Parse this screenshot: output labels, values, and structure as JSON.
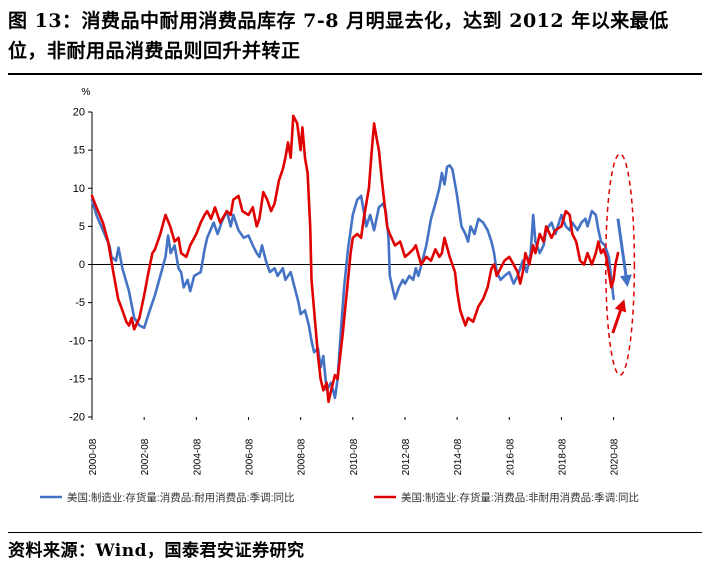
{
  "figure": {
    "title": "图 13：消费品中耐用消费品库存 7-8 月明显去化，达到 2012 年以来最低位，非耐用品消费品则回升并转正",
    "source": "资料来源：Wind，国泰君安证券研究"
  },
  "chart_data": {
    "type": "line",
    "title": "",
    "ylabel": "%",
    "xlabel": "",
    "ylim": [
      -20,
      20
    ],
    "yticks": [
      -20,
      -15,
      -10,
      -5,
      0,
      5,
      10,
      15,
      20
    ],
    "xlim": [
      2000.583,
      2021.25
    ],
    "xticks": [
      {
        "x": 2000.583,
        "label": "2000-08"
      },
      {
        "x": 2002.583,
        "label": "2002-08"
      },
      {
        "x": 2004.583,
        "label": "2004-08"
      },
      {
        "x": 2006.583,
        "label": "2006-08"
      },
      {
        "x": 2008.583,
        "label": "2008-08"
      },
      {
        "x": 2010.583,
        "label": "2010-08"
      },
      {
        "x": 2012.583,
        "label": "2012-08"
      },
      {
        "x": 2014.583,
        "label": "2014-08"
      },
      {
        "x": 2016.583,
        "label": "2016-08"
      },
      {
        "x": 2018.583,
        "label": "2018-08"
      },
      {
        "x": 2020.583,
        "label": "2020-08"
      }
    ],
    "legend_position": "bottom",
    "series": [
      {
        "name": "美国:制造业:存货量:消费品:耐用消费品:季调:同比",
        "color": "#4472C4",
        "points": [
          [
            2000.583,
            8.5
          ],
          [
            2000.75,
            6.5
          ],
          [
            2001.0,
            4.5
          ],
          [
            2001.25,
            2.5
          ],
          [
            2001.33,
            1.0
          ],
          [
            2001.5,
            0.5
          ],
          [
            2001.6,
            2.2
          ],
          [
            2001.75,
            -0.5
          ],
          [
            2002.0,
            -3.5
          ],
          [
            2002.2,
            -7.0
          ],
          [
            2002.4,
            -8.0
          ],
          [
            2002.583,
            -8.3
          ],
          [
            2002.75,
            -6.5
          ],
          [
            2003.0,
            -4.0
          ],
          [
            2003.2,
            -1.5
          ],
          [
            2003.4,
            1.0
          ],
          [
            2003.5,
            3.8
          ],
          [
            2003.6,
            1.5
          ],
          [
            2003.75,
            2.5
          ],
          [
            2003.9,
            -0.5
          ],
          [
            2004.0,
            -1.0
          ],
          [
            2004.1,
            -3.0
          ],
          [
            2004.25,
            -2.0
          ],
          [
            2004.35,
            -3.5
          ],
          [
            2004.5,
            -1.5
          ],
          [
            2004.75,
            -1.0
          ],
          [
            2004.9,
            2.0
          ],
          [
            2005.0,
            3.5
          ],
          [
            2005.25,
            5.5
          ],
          [
            2005.4,
            4.0
          ],
          [
            2005.583,
            5.8
          ],
          [
            2005.75,
            7.0
          ],
          [
            2005.9,
            5.0
          ],
          [
            2006.0,
            6.5
          ],
          [
            2006.2,
            4.5
          ],
          [
            2006.4,
            3.5
          ],
          [
            2006.583,
            3.8
          ],
          [
            2006.75,
            2.5
          ],
          [
            2006.9,
            1.5
          ],
          [
            2007.0,
            1.0
          ],
          [
            2007.1,
            2.5
          ],
          [
            2007.25,
            0.5
          ],
          [
            2007.4,
            -1.0
          ],
          [
            2007.583,
            -0.5
          ],
          [
            2007.7,
            -1.5
          ],
          [
            2007.9,
            -0.5
          ],
          [
            2008.0,
            -2.0
          ],
          [
            2008.2,
            -1.0
          ],
          [
            2008.35,
            -3.0
          ],
          [
            2008.5,
            -5.0
          ],
          [
            2008.583,
            -6.5
          ],
          [
            2008.75,
            -6.0
          ],
          [
            2008.9,
            -8.0
          ],
          [
            2009.0,
            -10.0
          ],
          [
            2009.1,
            -11.5
          ],
          [
            2009.25,
            -11.0
          ],
          [
            2009.35,
            -13.5
          ],
          [
            2009.45,
            -12.0
          ],
          [
            2009.583,
            -16.5
          ],
          [
            2009.75,
            -15.5
          ],
          [
            2009.9,
            -17.5
          ],
          [
            2010.0,
            -15.0
          ],
          [
            2010.1,
            -10.0
          ],
          [
            2010.25,
            -3.0
          ],
          [
            2010.4,
            2.0
          ],
          [
            2010.583,
            6.5
          ],
          [
            2010.75,
            8.5
          ],
          [
            2010.9,
            9.0
          ],
          [
            2011.0,
            7.0
          ],
          [
            2011.1,
            5.0
          ],
          [
            2011.25,
            6.5
          ],
          [
            2011.4,
            4.5
          ],
          [
            2011.583,
            7.5
          ],
          [
            2011.75,
            8.0
          ],
          [
            2011.85,
            7.0
          ],
          [
            2011.95,
            3.5
          ],
          [
            2012.0,
            -1.5
          ],
          [
            2012.1,
            -3.0
          ],
          [
            2012.2,
            -4.5
          ],
          [
            2012.35,
            -3.0
          ],
          [
            2012.5,
            -2.0
          ],
          [
            2012.583,
            -2.5
          ],
          [
            2012.75,
            -1.5
          ],
          [
            2012.9,
            -2.0
          ],
          [
            2013.0,
            -0.5
          ],
          [
            2013.1,
            -1.5
          ],
          [
            2013.25,
            0.5
          ],
          [
            2013.4,
            2.5
          ],
          [
            2013.583,
            6.0
          ],
          [
            2013.75,
            8.0
          ],
          [
            2013.9,
            10.0
          ],
          [
            2014.0,
            12.0
          ],
          [
            2014.1,
            10.5
          ],
          [
            2014.2,
            12.8
          ],
          [
            2014.3,
            13.0
          ],
          [
            2014.4,
            12.5
          ],
          [
            2014.583,
            9.0
          ],
          [
            2014.75,
            5.0
          ],
          [
            2014.9,
            4.0
          ],
          [
            2015.0,
            3.0
          ],
          [
            2015.1,
            5.0
          ],
          [
            2015.25,
            4.0
          ],
          [
            2015.4,
            6.0
          ],
          [
            2015.583,
            5.5
          ],
          [
            2015.75,
            4.5
          ],
          [
            2015.9,
            3.0
          ],
          [
            2016.0,
            1.5
          ],
          [
            2016.1,
            -1.0
          ],
          [
            2016.25,
            -2.0
          ],
          [
            2016.4,
            -1.5
          ],
          [
            2016.583,
            -1.0
          ],
          [
            2016.75,
            -2.5
          ],
          [
            2016.9,
            -1.5
          ],
          [
            2017.0,
            -0.5
          ],
          [
            2017.1,
            0.5
          ],
          [
            2017.25,
            -1.0
          ],
          [
            2017.4,
            1.5
          ],
          [
            2017.5,
            6.5
          ],
          [
            2017.583,
            3.0
          ],
          [
            2017.75,
            1.5
          ],
          [
            2017.9,
            2.5
          ],
          [
            2018.0,
            4.5
          ],
          [
            2018.2,
            5.5
          ],
          [
            2018.35,
            4.0
          ],
          [
            2018.583,
            6.5
          ],
          [
            2018.75,
            5.0
          ],
          [
            2018.9,
            4.5
          ],
          [
            2019.0,
            5.5
          ],
          [
            2019.2,
            4.5
          ],
          [
            2019.35,
            5.5
          ],
          [
            2019.5,
            6.0
          ],
          [
            2019.583,
            5.0
          ],
          [
            2019.75,
            7.0
          ],
          [
            2019.9,
            6.5
          ],
          [
            2020.0,
            4.5
          ],
          [
            2020.1,
            3.0
          ],
          [
            2020.25,
            2.5
          ],
          [
            2020.4,
            1.0
          ],
          [
            2020.5,
            -2.0
          ],
          [
            2020.583,
            -4.5
          ]
        ]
      },
      {
        "name": "美国:制造业:存货量:消费品:非耐用消费品:季调:同比",
        "color": "#E00000",
        "points": [
          [
            2000.583,
            9.0
          ],
          [
            2000.75,
            7.5
          ],
          [
            2001.0,
            5.5
          ],
          [
            2001.2,
            3.0
          ],
          [
            2001.4,
            -1.0
          ],
          [
            2001.583,
            -4.5
          ],
          [
            2001.75,
            -6.0
          ],
          [
            2001.9,
            -7.5
          ],
          [
            2002.0,
            -8.0
          ],
          [
            2002.1,
            -7.0
          ],
          [
            2002.2,
            -8.5
          ],
          [
            2002.4,
            -7.0
          ],
          [
            2002.583,
            -4.0
          ],
          [
            2002.75,
            -1.0
          ],
          [
            2002.9,
            1.5
          ],
          [
            2003.0,
            2.0
          ],
          [
            2003.2,
            4.0
          ],
          [
            2003.4,
            6.5
          ],
          [
            2003.583,
            5.0
          ],
          [
            2003.75,
            3.0
          ],
          [
            2003.9,
            3.5
          ],
          [
            2004.0,
            1.5
          ],
          [
            2004.2,
            1.0
          ],
          [
            2004.35,
            2.5
          ],
          [
            2004.583,
            4.0
          ],
          [
            2004.75,
            5.5
          ],
          [
            2004.9,
            6.5
          ],
          [
            2005.0,
            7.0
          ],
          [
            2005.15,
            6.0
          ],
          [
            2005.3,
            7.5
          ],
          [
            2005.5,
            5.5
          ],
          [
            2005.75,
            7.0
          ],
          [
            2005.9,
            6.5
          ],
          [
            2006.0,
            8.5
          ],
          [
            2006.2,
            9.0
          ],
          [
            2006.35,
            7.0
          ],
          [
            2006.583,
            6.5
          ],
          [
            2006.75,
            7.5
          ],
          [
            2006.9,
            5.0
          ],
          [
            2007.0,
            6.0
          ],
          [
            2007.15,
            9.5
          ],
          [
            2007.3,
            8.5
          ],
          [
            2007.45,
            7.0
          ],
          [
            2007.583,
            8.0
          ],
          [
            2007.75,
            11.0
          ],
          [
            2007.9,
            12.5
          ],
          [
            2008.0,
            14.0
          ],
          [
            2008.1,
            16.0
          ],
          [
            2008.2,
            14.0
          ],
          [
            2008.3,
            19.5
          ],
          [
            2008.45,
            18.5
          ],
          [
            2008.583,
            15.0
          ],
          [
            2008.65,
            18.0
          ],
          [
            2008.75,
            14.0
          ],
          [
            2008.85,
            12.0
          ],
          [
            2008.95,
            5.0
          ],
          [
            2009.0,
            -2.0
          ],
          [
            2009.1,
            -6.0
          ],
          [
            2009.25,
            -12.0
          ],
          [
            2009.35,
            -15.0
          ],
          [
            2009.45,
            -16.5
          ],
          [
            2009.583,
            -15.5
          ],
          [
            2009.65,
            -18.0
          ],
          [
            2009.75,
            -16.5
          ],
          [
            2009.9,
            -14.5
          ],
          [
            2010.0,
            -15.0
          ],
          [
            2010.1,
            -12.0
          ],
          [
            2010.2,
            -9.0
          ],
          [
            2010.3,
            -5.5
          ],
          [
            2010.4,
            -2.0
          ],
          [
            2010.5,
            1.5
          ],
          [
            2010.583,
            3.5
          ],
          [
            2010.75,
            4.0
          ],
          [
            2010.9,
            3.5
          ],
          [
            2011.0,
            6.0
          ],
          [
            2011.1,
            8.0
          ],
          [
            2011.2,
            10.0
          ],
          [
            2011.3,
            14.5
          ],
          [
            2011.4,
            18.5
          ],
          [
            2011.5,
            16.5
          ],
          [
            2011.583,
            15.0
          ],
          [
            2011.7,
            11.0
          ],
          [
            2011.8,
            8.0
          ],
          [
            2011.9,
            5.0
          ],
          [
            2012.0,
            4.0
          ],
          [
            2012.2,
            2.5
          ],
          [
            2012.4,
            3.0
          ],
          [
            2012.583,
            1.0
          ],
          [
            2012.75,
            1.5
          ],
          [
            2012.9,
            2.0
          ],
          [
            2013.0,
            2.5
          ],
          [
            2013.2,
            0.0
          ],
          [
            2013.4,
            1.0
          ],
          [
            2013.583,
            0.5
          ],
          [
            2013.75,
            2.0
          ],
          [
            2013.9,
            1.0
          ],
          [
            2014.0,
            1.5
          ],
          [
            2014.1,
            3.5
          ],
          [
            2014.3,
            1.0
          ],
          [
            2014.5,
            -1.0
          ],
          [
            2014.583,
            -3.5
          ],
          [
            2014.7,
            -6.0
          ],
          [
            2014.8,
            -7.0
          ],
          [
            2014.9,
            -8.0
          ],
          [
            2015.0,
            -7.0
          ],
          [
            2015.2,
            -7.5
          ],
          [
            2015.4,
            -5.5
          ],
          [
            2015.583,
            -4.5
          ],
          [
            2015.75,
            -3.0
          ],
          [
            2015.9,
            -0.5
          ],
          [
            2016.0,
            0.0
          ],
          [
            2016.1,
            -1.5
          ],
          [
            2016.25,
            -0.5
          ],
          [
            2016.4,
            0.5
          ],
          [
            2016.583,
            1.0
          ],
          [
            2016.75,
            0.0
          ],
          [
            2016.9,
            -1.0
          ],
          [
            2017.0,
            -2.5
          ],
          [
            2017.1,
            -1.0
          ],
          [
            2017.2,
            1.5
          ],
          [
            2017.35,
            0.0
          ],
          [
            2017.5,
            2.5
          ],
          [
            2017.583,
            1.5
          ],
          [
            2017.75,
            4.0
          ],
          [
            2017.9,
            3.0
          ],
          [
            2018.0,
            5.0
          ],
          [
            2018.2,
            3.5
          ],
          [
            2018.35,
            4.5
          ],
          [
            2018.583,
            5.0
          ],
          [
            2018.75,
            7.0
          ],
          [
            2018.9,
            6.5
          ],
          [
            2019.0,
            4.0
          ],
          [
            2019.15,
            3.0
          ],
          [
            2019.3,
            0.5
          ],
          [
            2019.45,
            0.0
          ],
          [
            2019.583,
            1.5
          ],
          [
            2019.75,
            0.0
          ],
          [
            2019.9,
            1.5
          ],
          [
            2020.0,
            3.0
          ],
          [
            2020.1,
            1.5
          ],
          [
            2020.2,
            2.0
          ],
          [
            2020.3,
            1.0
          ],
          [
            2020.4,
            -1.0
          ],
          [
            2020.5,
            -3.0
          ],
          [
            2020.583,
            -2.0
          ],
          [
            2020.65,
            0.0
          ],
          [
            2020.75,
            1.5
          ]
        ]
      }
    ],
    "annotations": {
      "blue_arrow": {
        "from": [
          2020.75,
          6.0
        ],
        "to": [
          2021.1,
          -2.5
        ],
        "color": "#4472C4"
      },
      "red_arrow": {
        "from": [
          2020.55,
          -9.0
        ],
        "to": [
          2020.95,
          -5.0
        ],
        "color": "#E00000"
      },
      "ellipse": {
        "cx": 2020.83,
        "cy": 0.0,
        "rx_years": 0.55,
        "ry_pct": 14.5,
        "color": "#E00000"
      }
    }
  }
}
